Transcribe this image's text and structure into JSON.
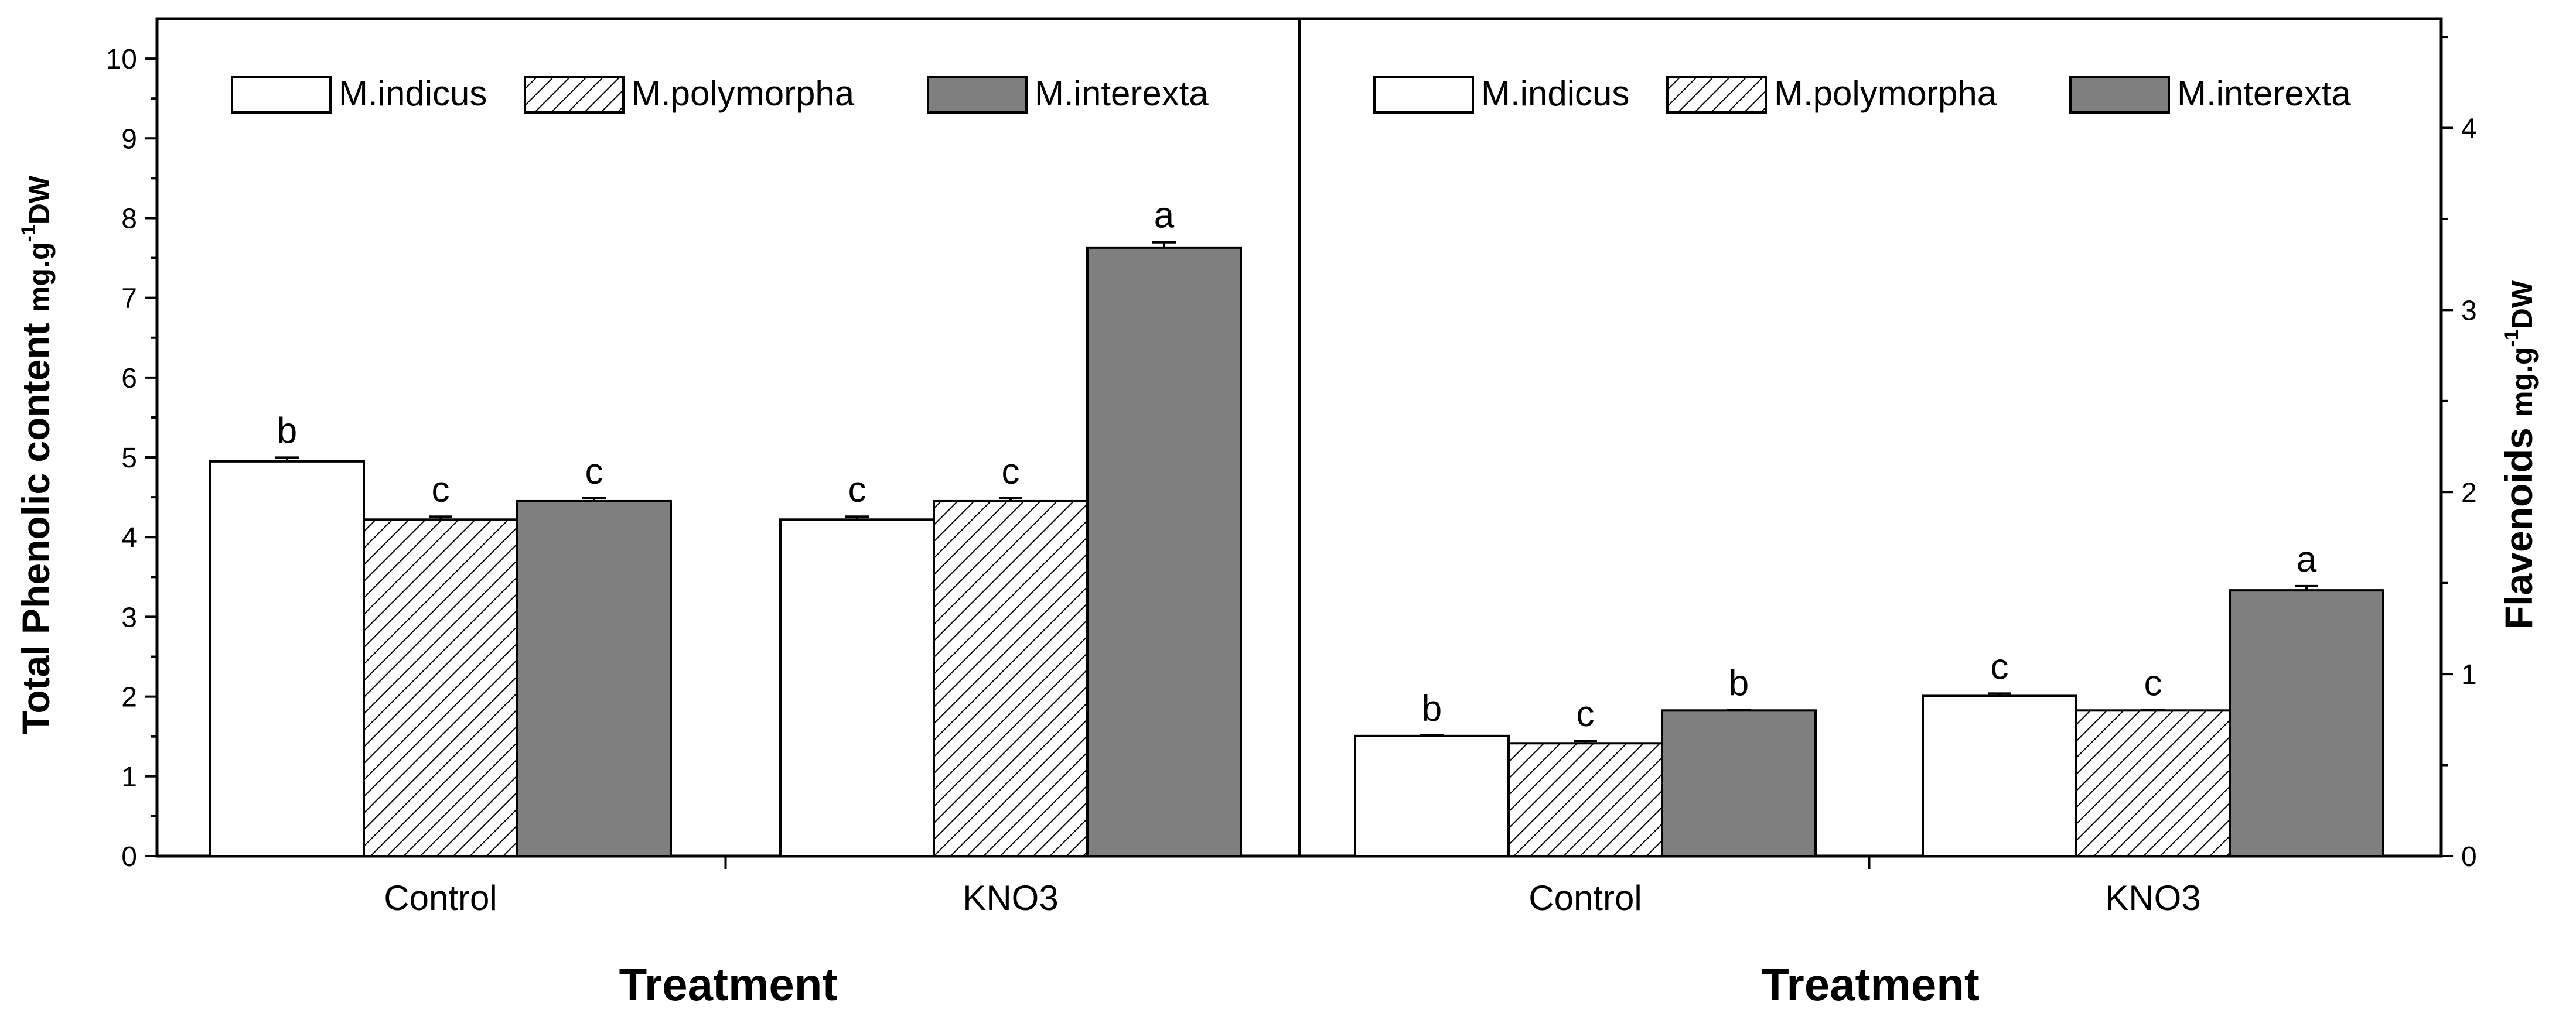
{
  "chart_data": [
    {
      "type": "bar",
      "title": "",
      "categories": [
        "Control",
        "KNO3"
      ],
      "series": [
        {
          "name": "M.indicus",
          "values": [
            4.95,
            4.22
          ],
          "errors": [
            0.04,
            0.03
          ],
          "letters": [
            "b",
            "c"
          ],
          "fill": "white"
        },
        {
          "name": "M.polymorpha",
          "values": [
            4.22,
            4.45
          ],
          "errors": [
            0.03,
            0.03
          ],
          "letters": [
            "c",
            "c"
          ],
          "fill": "hatch"
        },
        {
          "name": "M.interexta",
          "values": [
            4.45,
            7.63
          ],
          "errors": [
            0.03,
            0.06
          ],
          "letters": [
            "c",
            "a"
          ],
          "fill": "gray"
        }
      ],
      "xlabel": "Treatment",
      "ylabel": "Total Phenolic content",
      "ylabel_unit_prefix": "mg.g",
      "ylabel_unit_exp": "-1",
      "ylabel_unit_suffix": "DW",
      "ylim": [
        0,
        10.5
      ],
      "yticks": [
        "0",
        "1",
        "2",
        "3",
        "4",
        "5",
        "6",
        "7",
        "8",
        "9",
        "10"
      ],
      "legend_position": "top",
      "y_axis_side": "left"
    },
    {
      "type": "bar",
      "title": "",
      "categories": [
        "Control",
        "KNO3"
      ],
      "series": [
        {
          "name": "M.indicus",
          "values": [
            0.66,
            0.88
          ],
          "errors": [
            0.0,
            0.01
          ],
          "letters": [
            "b",
            "c"
          ],
          "fill": "white"
        },
        {
          "name": "M.polymorpha",
          "values": [
            0.62,
            0.8
          ],
          "errors": [
            0.01,
            0.0
          ],
          "letters": [
            "c",
            "c"
          ],
          "fill": "hatch"
        },
        {
          "name": "M.interexta",
          "values": [
            0.8,
            1.46
          ],
          "errors": [
            0.0,
            0.02
          ],
          "letters": [
            "b",
            "a"
          ],
          "fill": "gray"
        }
      ],
      "xlabel": "Treatment",
      "ylabel": "Flavenoids",
      "ylabel_unit_prefix": "mg.g",
      "ylabel_unit_exp": "-1",
      "ylabel_unit_suffix": "DW",
      "ylim": [
        0,
        4.6
      ],
      "yticks": [
        "0",
        "1",
        "2",
        "3",
        "4"
      ],
      "legend_position": "top",
      "y_axis_side": "right"
    }
  ],
  "colors": {
    "gray_fill": "#7f7f7f",
    "axis": "#000000",
    "white_fill": "#ffffff"
  }
}
